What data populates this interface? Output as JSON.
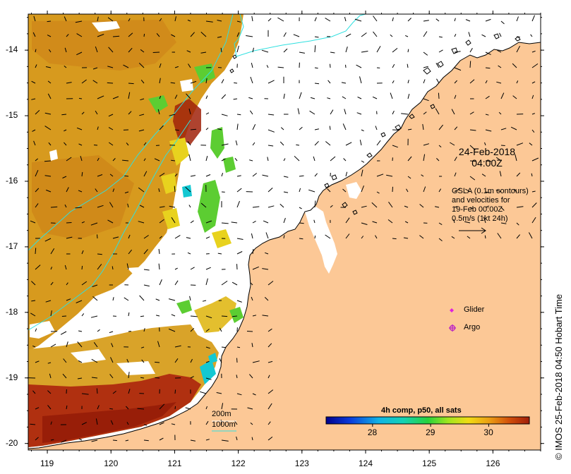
{
  "date": {
    "line1": "24-Feb-2018",
    "line2": "04:00Z"
  },
  "legend_text": {
    "line1": "GSLA (0.1m contours)",
    "line2": "and velocities for",
    "line3": "19-Feb 00:00Z",
    "line4": "0.5m/s (1kt 24h)"
  },
  "markers": {
    "glider": "Glider",
    "argo": "Argo"
  },
  "depth_legend": {
    "shallow": "200m",
    "deep": "1000m"
  },
  "colorbar": {
    "title": "4h comp, p50, all sats",
    "ticks": [
      "28",
      "29",
      "30"
    ],
    "range": [
      27.2,
      30.7
    ]
  },
  "credit": "IMOS 25-Feb-2018 04:50 Hobart Time",
  "copyright_symbol": "©",
  "axes": {
    "x_ticks": [
      "119",
      "120",
      "121",
      "122",
      "123",
      "124",
      "125",
      "126"
    ],
    "y_ticks": [
      "-14",
      "-15",
      "-16",
      "-17",
      "-18",
      "-19",
      "-20"
    ],
    "x_range": [
      118.7,
      126.75
    ],
    "y_range": [
      -20.1,
      -13.45
    ]
  },
  "colors": {
    "land": "#fcc896",
    "sea_warm": "#d79a1e",
    "sea_hot": "#a0220a",
    "sea_mid": "#e8d21e",
    "sea_cool": "#5ccd32",
    "contour": "#2fe0e0",
    "glider": "#e020e0",
    "argo": "#c030c0"
  }
}
